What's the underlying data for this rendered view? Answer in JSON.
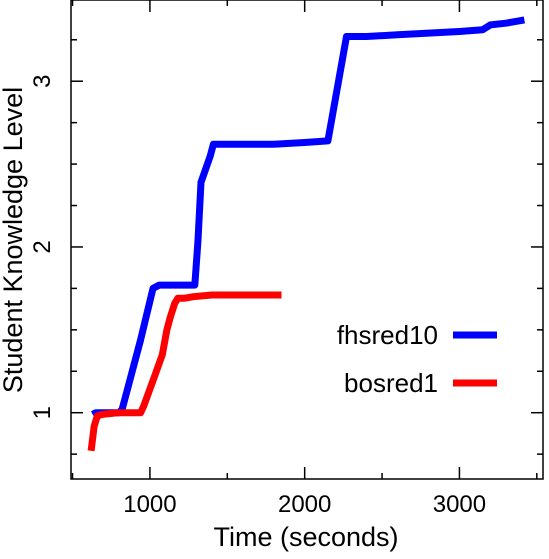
{
  "chart_data": {
    "type": "line",
    "title": "",
    "xlabel": "Time (seconds)",
    "ylabel": "Student Knowledge Level",
    "xlim": [
      490,
      3540
    ],
    "ylim": [
      0.6,
      3.49
    ],
    "x_ticks": [
      1000,
      2000,
      3000
    ],
    "x_tick_labels": [
      "1000",
      "2000",
      "3000"
    ],
    "x_minor_ticks": [
      500,
      1500,
      2500,
      3500
    ],
    "y_ticks": [
      1,
      2,
      3
    ],
    "y_tick_labels": [
      "1",
      "2",
      "3"
    ],
    "y_minor_ticks": [
      0.75,
      1.25,
      1.5,
      1.75,
      2.25,
      2.5,
      2.75,
      3.25
    ],
    "grid": false,
    "legend_position": "center-right",
    "series": [
      {
        "name": "fhsred10",
        "color": "#0000ff",
        "x": [
          630,
          650,
          680,
          800,
          820,
          940,
          1020,
          1060,
          1150,
          1290,
          1310,
          1330,
          1390,
          1410,
          1500,
          1600,
          1800,
          2000,
          2150,
          2270,
          2400,
          2600,
          2800,
          3000,
          3150,
          3200,
          3300,
          3420
        ],
        "y": [
          0.99,
          1.0,
          1.0,
          1.0,
          1.02,
          1.44,
          1.75,
          1.77,
          1.77,
          1.77,
          2.03,
          2.39,
          2.55,
          2.62,
          2.62,
          2.62,
          2.62,
          2.63,
          2.64,
          3.27,
          3.27,
          3.28,
          3.29,
          3.3,
          3.31,
          3.34,
          3.35,
          3.37
        ]
      },
      {
        "name": "bosred1",
        "color": "#ff0000",
        "x": [
          620,
          640,
          660,
          690,
          800,
          940,
          960,
          1030,
          1080,
          1110,
          1130,
          1160,
          1180,
          1220,
          1280,
          1400,
          1600,
          1850
        ],
        "y": [
          0.77,
          0.92,
          0.98,
          0.99,
          1.0,
          1.0,
          1.04,
          1.22,
          1.35,
          1.5,
          1.57,
          1.66,
          1.69,
          1.69,
          1.7,
          1.71,
          1.71,
          1.71
        ]
      }
    ]
  }
}
